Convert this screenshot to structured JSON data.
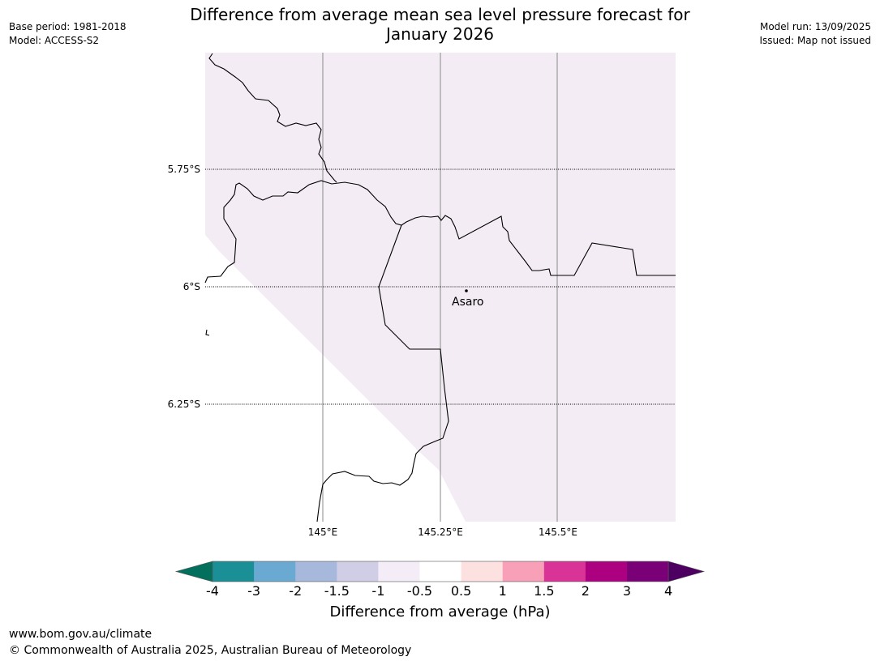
{
  "title": {
    "line1": "Difference from average mean sea level pressure forecast for",
    "line2": "January 2026"
  },
  "meta": {
    "base_period": "Base period: 1981-2018",
    "model": "Model: ACCESS-S2",
    "model_run": "Model run: 13/09/2025",
    "issued": "Issued: Map not issued"
  },
  "map": {
    "lat_labels": [
      "5.75°S",
      "6°S",
      "6.25°S"
    ],
    "lon_labels": [
      "145°E",
      "145.25°E",
      "145.5°E"
    ],
    "place": {
      "name": "Asaro"
    },
    "fill_color": "#f3ecf4"
  },
  "colorbar": {
    "title": "Difference from average (hPa)",
    "ticks": [
      "-4",
      "-3",
      "-2",
      "-1.5",
      "-1",
      "-0.5",
      "0.5",
      "1",
      "1.5",
      "2",
      "3",
      "4"
    ],
    "colors": [
      "#1a9096",
      "#6aa9d1",
      "#a6b8dc",
      "#d0cde6",
      "#f4ecf7",
      "#ffffff",
      "#fde0e0",
      "#f8a0b8",
      "#da3397",
      "#ad0080",
      "#7a0077"
    ],
    "low_extend_color": "#02705d",
    "high_extend_color": "#4d0062"
  },
  "footer": {
    "url": "www.bom.gov.au/climate",
    "copyright": "© Commonwealth of Australia 2025, Australian Bureau of Meteorology"
  }
}
